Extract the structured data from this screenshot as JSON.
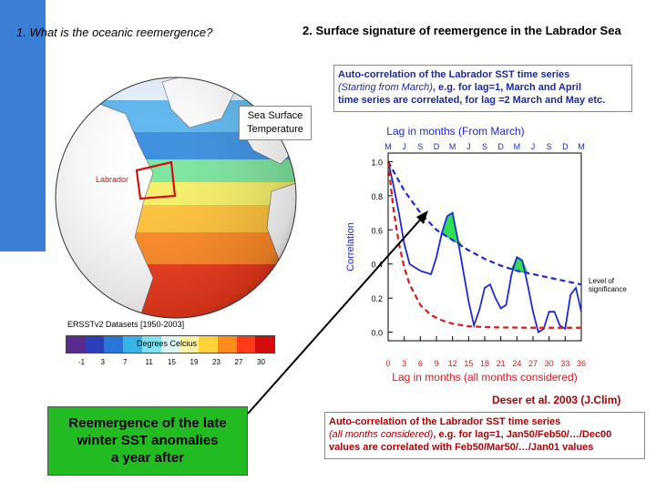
{
  "slide": {
    "title_left": "1. What is the oceanic reemergence?",
    "title_right": "2. Surface signature of reemergence in the Labrador Sea"
  },
  "box_top": {
    "line1": "Auto-correlation of the Labrador SST time series",
    "line2_italic": "(Starting from March)",
    "line2_rest": ", e.g. for lag=1, March and April",
    "line3": "time series are correlated, for lag =2 March and May etc."
  },
  "box_bottom": {
    "line1": "Auto-correlation of the Labrador SST time series",
    "line2_italic": "(all months considered)",
    "line2_rest": ", e.g. for lag=1, Jan50/Feb50/…/Dec00",
    "line3": "values are correlated with Feb50/Mar50/…/Jan01 values"
  },
  "globe": {
    "sst_label_line1": "Sea Surface",
    "sst_label_line2": "Temperature",
    "region_label": "Labrador",
    "dataset": "ERSSTv2 Datasets [1950-2003]",
    "colorbar_caption": "Degrees Celcius",
    "colorbar_ticks": [
      "-1",
      "3",
      "7",
      "11",
      "15",
      "19",
      "23",
      "27",
      "30"
    ],
    "colorbar_colors": [
      "#5a2a8c",
      "#2c3fb8",
      "#2a76d8",
      "#35b4e8",
      "#7fe0f0",
      "#dff7f2",
      "#fff3a8",
      "#ffd23a",
      "#ff8a1e",
      "#ff3b1a",
      "#d40c0c"
    ]
  },
  "green_box": {
    "line1": "Reemergence of the late",
    "line2": "winter SST anomalies",
    "line3": "a year after"
  },
  "citation": "Deser et al. 2003 (J.Clim)",
  "level_of_significance": [
    "Level of",
    "significance"
  ],
  "chart_data": {
    "type": "line",
    "top_title": "Lag in months (From March)",
    "top_ticks": [
      "M",
      "J",
      "S",
      "D",
      "M",
      "J",
      "S",
      "D",
      "M",
      "J",
      "S",
      "D",
      "M"
    ],
    "xlabel": "Lag in months (all months considered)",
    "ylabel": "Correlation",
    "x_ticks": [
      "0",
      "3",
      "6",
      "9",
      "12",
      "15",
      "18",
      "21",
      "24",
      "27",
      "30",
      "33",
      "36"
    ],
    "y_ticks": [
      "0.0",
      "0.2",
      "0.4",
      "0.6",
      "0.8",
      "1.0"
    ],
    "xlim": [
      0,
      36
    ],
    "ylim": [
      -0.05,
      1.05
    ],
    "series": [
      {
        "color": "#1a2ad8",
        "style": "solid",
        "x": [
          0,
          1,
          2,
          3,
          4,
          5,
          6,
          7,
          8,
          9,
          10,
          11,
          12,
          13,
          14,
          15,
          16,
          17,
          18,
          19,
          20,
          21,
          22,
          23,
          24,
          25,
          26,
          27,
          28,
          29,
          30,
          31,
          32,
          33,
          34,
          35,
          36
        ],
        "y": [
          1.0,
          0.86,
          0.7,
          0.52,
          0.4,
          0.38,
          0.36,
          0.35,
          0.34,
          0.44,
          0.58,
          0.68,
          0.7,
          0.54,
          0.36,
          0.18,
          0.04,
          0.13,
          0.26,
          0.28,
          0.2,
          0.14,
          0.16,
          0.34,
          0.44,
          0.42,
          0.28,
          0.12,
          0.0,
          0.02,
          0.12,
          0.12,
          0.04,
          0.02,
          0.22,
          0.26,
          0.12
        ]
      },
      {
        "color": "#1a2ad8",
        "style": "dashed",
        "x": [
          0,
          3,
          6,
          9,
          12,
          15,
          18,
          21,
          24,
          27,
          30,
          33,
          36
        ],
        "y": [
          1.0,
          0.83,
          0.7,
          0.6,
          0.54,
          0.48,
          0.43,
          0.39,
          0.36,
          0.34,
          0.32,
          0.3,
          0.28
        ]
      },
      {
        "color": "#d81a1a",
        "style": "dashed",
        "x": [
          0,
          1,
          2,
          3,
          4,
          6,
          8,
          10,
          12,
          15,
          18,
          21,
          24,
          27,
          30,
          33,
          36
        ],
        "y": [
          1.0,
          0.72,
          0.52,
          0.38,
          0.28,
          0.16,
          0.1,
          0.07,
          0.05,
          0.035,
          0.03,
          0.028,
          0.027,
          0.026,
          0.026,
          0.026,
          0.026
        ]
      }
    ]
  }
}
